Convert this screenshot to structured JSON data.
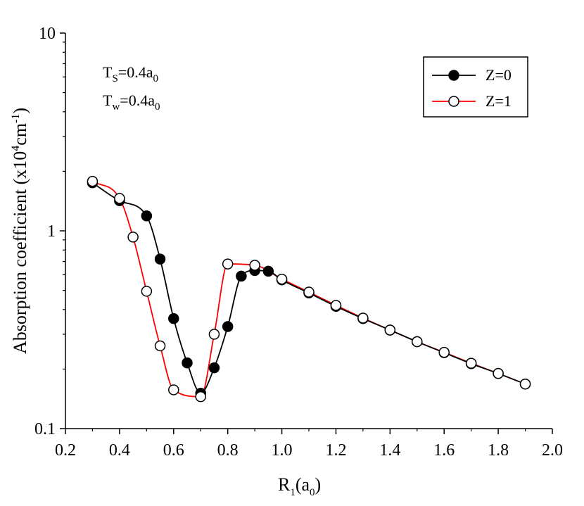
{
  "chart_data": {
    "type": "line",
    "title": "",
    "xlabel": {
      "main": "R",
      "sub1": "1",
      "mid": "(a",
      "sub2": "0",
      "end": ")"
    },
    "ylabel": {
      "p1": "Absorption coefficient (x10",
      "sup1": "4",
      "p2": "cm",
      "sup2": "-1",
      "p3": ")"
    },
    "xlim": [
      0.2,
      2.0
    ],
    "ylim": [
      0.1,
      10
    ],
    "yscale": "log",
    "x_ticks": [
      "0.2",
      "0.4",
      "0.6",
      "0.8",
      "1.0",
      "1.2",
      "1.4",
      "1.6",
      "1.8",
      "2.0"
    ],
    "y_ticks": [
      {
        "value": 0.1,
        "label": "0.1"
      },
      {
        "value": 1,
        "label": "1"
      },
      {
        "value": 10,
        "label": "10"
      }
    ],
    "legend_position": "top-right",
    "annotations": [
      {
        "main": "T",
        "sub": "S",
        "rest": "=0.4a",
        "sub2": "0"
      },
      {
        "main": "T",
        "sub": "w",
        "rest": "=0.4a",
        "sub2": "0"
      }
    ],
    "series": [
      {
        "name": "Z=0",
        "color": "#000000",
        "marker": "filled-circle",
        "x": [
          0.3,
          0.4,
          0.5,
          0.55,
          0.6,
          0.65,
          0.7,
          0.75,
          0.8,
          0.85,
          0.9,
          0.95,
          1.0,
          1.1,
          1.2,
          1.3,
          1.4,
          1.5,
          1.6,
          1.7,
          1.8,
          1.9
        ],
        "y": [
          1.75,
          1.42,
          1.19,
          0.72,
          0.36,
          0.215,
          0.151,
          0.203,
          0.328,
          0.59,
          0.63,
          0.625,
          0.565,
          0.485,
          0.415,
          0.36,
          0.315,
          0.275,
          0.242,
          0.213,
          0.19,
          0.168
        ]
      },
      {
        "name": "Z=1",
        "color": "#ff0000",
        "marker": "open-circle",
        "x": [
          0.3,
          0.4,
          0.45,
          0.5,
          0.55,
          0.6,
          0.7,
          0.75,
          0.8,
          0.9,
          1.0,
          1.1,
          1.2,
          1.3,
          1.4,
          1.5,
          1.6,
          1.7,
          1.8,
          1.9
        ],
        "y": [
          1.78,
          1.46,
          0.93,
          0.495,
          0.262,
          0.157,
          0.145,
          0.3,
          0.68,
          0.67,
          0.57,
          0.49,
          0.42,
          0.362,
          0.315,
          0.275,
          0.243,
          0.214,
          0.19,
          0.168
        ]
      }
    ]
  }
}
